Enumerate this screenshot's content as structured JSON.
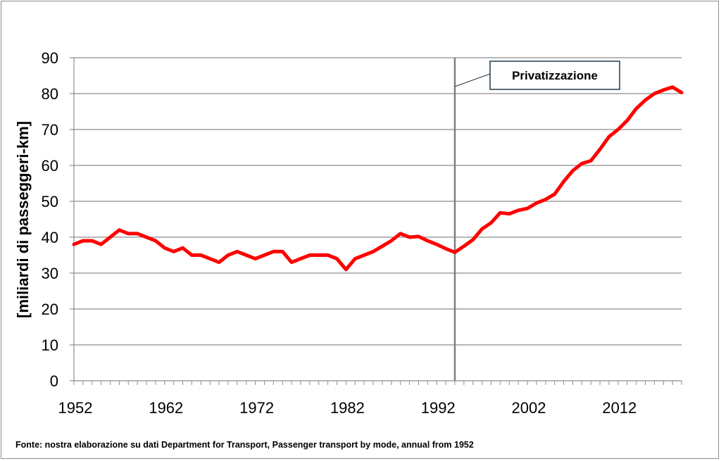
{
  "chart_data": {
    "type": "line",
    "title": "",
    "xlabel": "",
    "ylabel": "[miliardi di passeggeri-km]",
    "xlim": [
      1952,
      2019
    ],
    "ylim": [
      0,
      90
    ],
    "yticks": [
      0,
      10,
      20,
      30,
      40,
      50,
      60,
      70,
      80,
      90
    ],
    "xtick_labels": [
      "1952",
      "1962",
      "1972",
      "1982",
      "1992",
      "2002",
      "2012"
    ],
    "grid": "horizontal",
    "series": [
      {
        "color": "#ff0000",
        "x": [
          1952,
          1953,
          1954,
          1955,
          1956,
          1957,
          1958,
          1959,
          1960,
          1961,
          1962,
          1963,
          1964,
          1965,
          1966,
          1967,
          1968,
          1969,
          1970,
          1971,
          1972,
          1973,
          1974,
          1975,
          1976,
          1977,
          1978,
          1979,
          1980,
          1981,
          1982,
          1983,
          1984,
          1985,
          1986,
          1987,
          1988,
          1989,
          1990,
          1991,
          1992,
          1993,
          1994,
          1995,
          1996,
          1997,
          1998,
          1999,
          2000,
          2001,
          2002,
          2003,
          2004,
          2005,
          2006,
          2007,
          2008,
          2009,
          2010,
          2011,
          2012,
          2013,
          2014,
          2015,
          2016,
          2017,
          2018,
          2019
        ],
        "values": [
          38,
          39,
          39,
          38,
          40,
          42,
          41,
          41,
          40,
          39,
          37,
          36,
          37,
          35,
          35,
          34,
          33,
          35,
          36,
          35,
          34,
          35,
          36,
          36,
          33,
          34,
          35,
          35,
          35,
          34,
          31,
          34,
          35,
          36,
          37.5,
          39,
          41,
          40,
          40.2,
          39,
          38,
          36.8,
          35.8,
          37.5,
          39.3,
          42.3,
          44,
          46.8,
          46.5,
          47.5,
          48,
          49.5,
          50.5,
          52,
          55.5,
          58.5,
          60.5,
          61.3,
          64.5,
          68,
          70,
          72.5,
          75.8,
          78.2,
          80,
          81,
          81.8,
          80.3
        ]
      }
    ],
    "annotations": [
      {
        "text": "Privatizzazione",
        "x": 1994
      }
    ],
    "source": "Fonte: nostra elaborazione su dati Department for Transport, Passenger transport by mode, annual from 1952"
  }
}
